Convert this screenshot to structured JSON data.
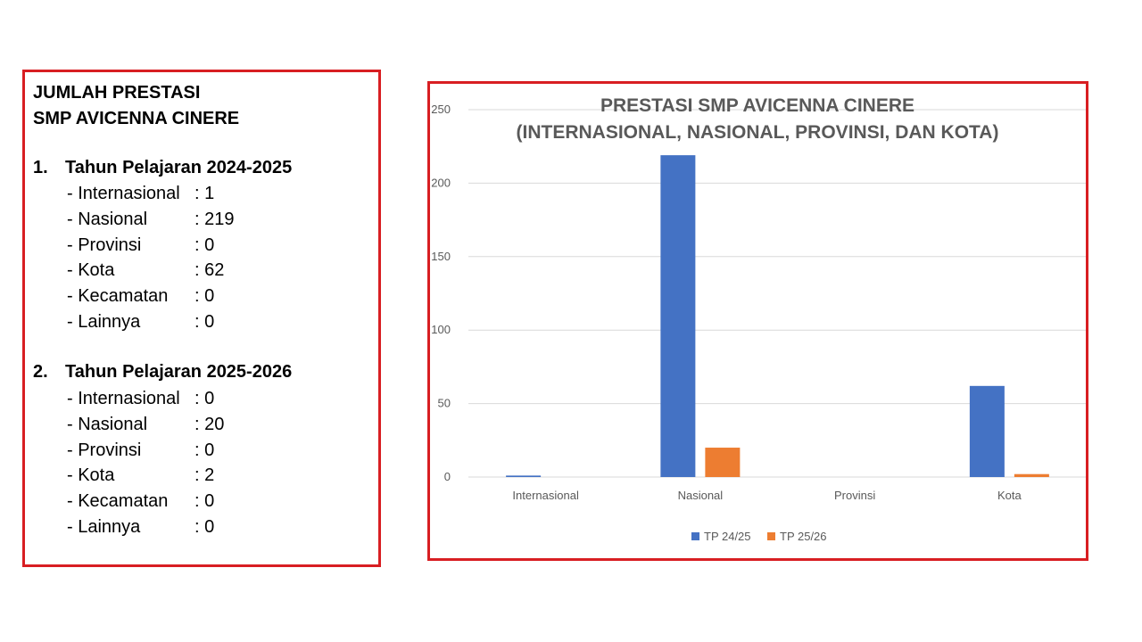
{
  "summary": {
    "title_line1": "JUMLAH PRESTASI",
    "title_line2": "SMP AVICENNA CINERE",
    "sections": [
      {
        "number": "1.",
        "heading": "Tahun Pelajaran 2024-2025",
        "items": [
          {
            "label": "- Internasional",
            "value": ": 1"
          },
          {
            "label": "- Nasional",
            "value": ": 219"
          },
          {
            "label": "- Provinsi",
            "value": ": 0"
          },
          {
            "label": "- Kota",
            "value": ": 62"
          },
          {
            "label": "- Kecamatan",
            "value": ": 0"
          },
          {
            "label": "- Lainnya",
            "value": ": 0"
          }
        ]
      },
      {
        "number": "2.",
        "heading": "Tahun Pelajaran 2025-2026",
        "items": [
          {
            "label": "- Internasional",
            "value": ": 0"
          },
          {
            "label": "- Nasional",
            "value": ": 20"
          },
          {
            "label": "- Provinsi",
            "value": ": 0"
          },
          {
            "label": "- Kota",
            "value": ": 2"
          },
          {
            "label": "- Kecamatan",
            "value": ": 0"
          },
          {
            "label": "- Lainnya",
            "value": ": 0"
          }
        ]
      }
    ]
  },
  "colors": {
    "border": "#d81e22",
    "series_1": "#4472c4",
    "series_2": "#ed7d31",
    "gridline": "#d9d9d9",
    "text_muted": "#595959"
  },
  "chart_data": {
    "type": "bar",
    "title_line1": "PRESTASI SMP AVICENNA CINERE",
    "title_line2": "(INTERNASIONAL, NASIONAL, PROVINSI, DAN KOTA)",
    "categories": [
      "Internasional",
      "Nasional",
      "Provinsi",
      "Kota"
    ],
    "series": [
      {
        "name": "TP 24/25",
        "values": [
          1,
          219,
          0,
          62
        ]
      },
      {
        "name": "TP 25/26",
        "values": [
          0,
          20,
          0,
          2
        ]
      }
    ],
    "ylim": [
      0,
      250
    ],
    "yticks": [
      0,
      50,
      100,
      150,
      200,
      250
    ],
    "grid": true,
    "legend_position": "bottom"
  }
}
